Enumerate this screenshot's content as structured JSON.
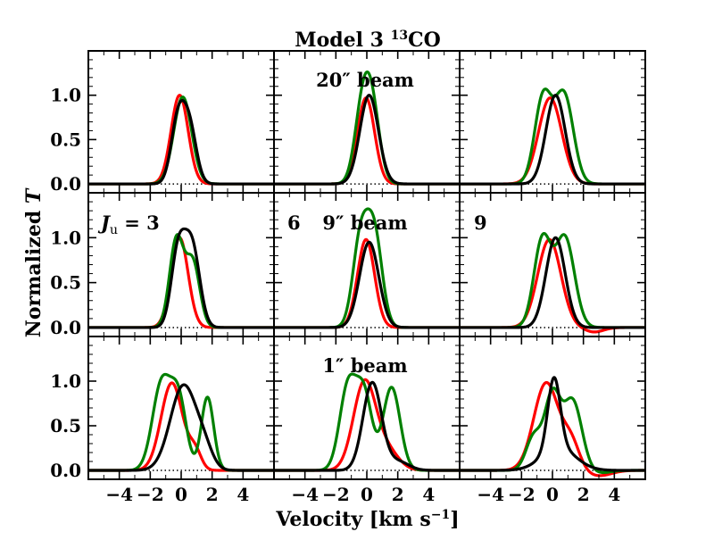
{
  "chart_data": {
    "type": "line",
    "title": "Model 3 ¹³CO",
    "xlabel": "Velocity [km s⁻¹]",
    "ylabel": "Normalized T",
    "xlim": [
      -6,
      6
    ],
    "ylim": [
      -0.1,
      1.5
    ],
    "xticks": [
      -4,
      -2,
      0,
      2,
      4
    ],
    "xtick_labels": [
      "−4",
      "−2",
      "0",
      "2",
      "4"
    ],
    "yticks": [
      0.0,
      0.5,
      1.0
    ],
    "ytick_labels": [
      "0.0",
      "0.5",
      "1.0"
    ],
    "series_colors": {
      "red": "#ff0000",
      "green": "#008000",
      "black": "#000000"
    },
    "rows": [
      {
        "annotation": "20″ beam",
        "annotation_col": 1
      },
      {
        "annotation": "9″ beam",
        "annotation_col": 1
      },
      {
        "annotation": "1″ beam",
        "annotation_col": 1
      }
    ],
    "column_labels": [
      "J_u = 3",
      "6",
      "9"
    ],
    "panels": [
      {
        "row": 0,
        "col": 0,
        "series": [
          {
            "name": "red",
            "components": [
              {
                "amp": 1.0,
                "mu": -0.1,
                "sigma": 0.55
              }
            ]
          },
          {
            "name": "green",
            "components": [
              {
                "amp": 0.98,
                "mu": 0.1,
                "sigma": 0.58
              }
            ]
          },
          {
            "name": "black",
            "components": [
              {
                "amp": 0.72,
                "mu": -0.2,
                "sigma": 0.45
              },
              {
                "amp": 0.6,
                "mu": 0.55,
                "sigma": 0.45
              }
            ]
          }
        ]
      },
      {
        "row": 0,
        "col": 1,
        "series": [
          {
            "name": "red",
            "components": [
              {
                "amp": 0.97,
                "mu": -0.05,
                "sigma": 0.55
              }
            ]
          },
          {
            "name": "green",
            "components": [
              {
                "amp": 0.78,
                "mu": -0.3,
                "sigma": 0.5
              },
              {
                "amp": 0.78,
                "mu": 0.35,
                "sigma": 0.5
              }
            ]
          },
          {
            "name": "black",
            "components": [
              {
                "amp": 1.0,
                "mu": 0.15,
                "sigma": 0.6
              }
            ]
          }
        ]
      },
      {
        "row": 0,
        "col": 2,
        "series": [
          {
            "name": "red",
            "components": [
              {
                "amp": 0.97,
                "mu": -0.15,
                "sigma": 0.75
              }
            ]
          },
          {
            "name": "green",
            "components": [
              {
                "amp": 0.97,
                "mu": -0.6,
                "sigma": 0.55
              },
              {
                "amp": 1.0,
                "mu": 0.75,
                "sigma": 0.6
              }
            ]
          },
          {
            "name": "black",
            "components": [
              {
                "amp": 1.0,
                "mu": 0.2,
                "sigma": 0.62
              }
            ]
          }
        ]
      },
      {
        "row": 1,
        "col": 0,
        "series": [
          {
            "name": "red",
            "components": [
              {
                "amp": 1.0,
                "mu": -0.1,
                "sigma": 0.55
              }
            ]
          },
          {
            "name": "green",
            "components": [
              {
                "amp": 0.98,
                "mu": -0.3,
                "sigma": 0.45
              },
              {
                "amp": 0.72,
                "mu": 0.75,
                "sigma": 0.45
              }
            ]
          },
          {
            "name": "black",
            "components": [
              {
                "amp": 0.82,
                "mu": -0.2,
                "sigma": 0.45
              },
              {
                "amp": 0.9,
                "mu": 0.7,
                "sigma": 0.5
              }
            ]
          }
        ]
      },
      {
        "row": 1,
        "col": 1,
        "series": [
          {
            "name": "red",
            "components": [
              {
                "amp": 0.98,
                "mu": -0.05,
                "sigma": 0.55
              }
            ]
          },
          {
            "name": "green",
            "components": [
              {
                "amp": 0.98,
                "mu": -0.4,
                "sigma": 0.5
              },
              {
                "amp": 1.0,
                "mu": 0.5,
                "sigma": 0.5
              }
            ]
          },
          {
            "name": "black",
            "components": [
              {
                "amp": 0.95,
                "mu": 0.15,
                "sigma": 0.62
              }
            ]
          }
        ]
      },
      {
        "row": 1,
        "col": 2,
        "series": [
          {
            "name": "red",
            "components": [
              {
                "amp": 0.98,
                "mu": -0.2,
                "sigma": 0.75
              },
              {
                "amp": -0.05,
                "mu": 2.7,
                "sigma": 0.6
              }
            ]
          },
          {
            "name": "green",
            "components": [
              {
                "amp": 0.97,
                "mu": -0.65,
                "sigma": 0.55
              },
              {
                "amp": 1.0,
                "mu": 0.8,
                "sigma": 0.62
              }
            ]
          },
          {
            "name": "black",
            "components": [
              {
                "amp": 1.0,
                "mu": 0.2,
                "sigma": 0.62
              }
            ]
          }
        ]
      },
      {
        "row": 2,
        "col": 0,
        "series": [
          {
            "name": "red",
            "components": [
              {
                "amp": 0.98,
                "mu": -0.6,
                "sigma": 0.7
              },
              {
                "amp": 0.2,
                "mu": 0.9,
                "sigma": 0.4
              }
            ]
          },
          {
            "name": "green",
            "components": [
              {
                "amp": 0.98,
                "mu": -1.25,
                "sigma": 0.6
              },
              {
                "amp": 0.75,
                "mu": -0.15,
                "sigma": 0.5
              },
              {
                "amp": 0.82,
                "mu": 1.7,
                "sigma": 0.4
              }
            ]
          },
          {
            "name": "black",
            "components": [
              {
                "amp": 0.95,
                "mu": 0.15,
                "sigma": 0.85
              },
              {
                "amp": 0.18,
                "mu": 1.5,
                "sigma": 0.55
              }
            ]
          }
        ]
      },
      {
        "row": 2,
        "col": 1,
        "series": [
          {
            "name": "red",
            "components": [
              {
                "amp": 0.98,
                "mu": -0.15,
                "sigma": 0.72
              },
              {
                "amp": 0.22,
                "mu": 1.3,
                "sigma": 0.75
              }
            ]
          },
          {
            "name": "green",
            "components": [
              {
                "amp": 0.95,
                "mu": -1.2,
                "sigma": 0.55
              },
              {
                "amp": 0.8,
                "mu": -0.15,
                "sigma": 0.5
              },
              {
                "amp": 0.93,
                "mu": 1.6,
                "sigma": 0.55
              }
            ]
          },
          {
            "name": "black",
            "components": [
              {
                "amp": 0.98,
                "mu": 0.35,
                "sigma": 0.6
              },
              {
                "amp": 0.1,
                "mu": 2.0,
                "sigma": 0.7
              }
            ]
          }
        ]
      },
      {
        "row": 2,
        "col": 2,
        "series": [
          {
            "name": "red",
            "components": [
              {
                "amp": 0.98,
                "mu": -0.4,
                "sigma": 0.8
              },
              {
                "amp": 0.3,
                "mu": 1.2,
                "sigma": 0.55
              },
              {
                "amp": -0.06,
                "mu": 3.0,
                "sigma": 0.8
              }
            ]
          },
          {
            "name": "green",
            "components": [
              {
                "amp": 0.38,
                "mu": -1.2,
                "sigma": 0.5
              },
              {
                "amp": 0.82,
                "mu": 0.0,
                "sigma": 0.5
              },
              {
                "amp": 0.78,
                "mu": 1.3,
                "sigma": 0.6
              },
              {
                "amp": -0.03,
                "mu": 3.0,
                "sigma": 0.7
              }
            ]
          },
          {
            "name": "black",
            "components": [
              {
                "amp": 0.8,
                "mu": 0.1,
                "sigma": 0.4
              },
              {
                "amp": 0.25,
                "mu": 0.4,
                "sigma": 1.1
              }
            ]
          }
        ]
      }
    ]
  }
}
